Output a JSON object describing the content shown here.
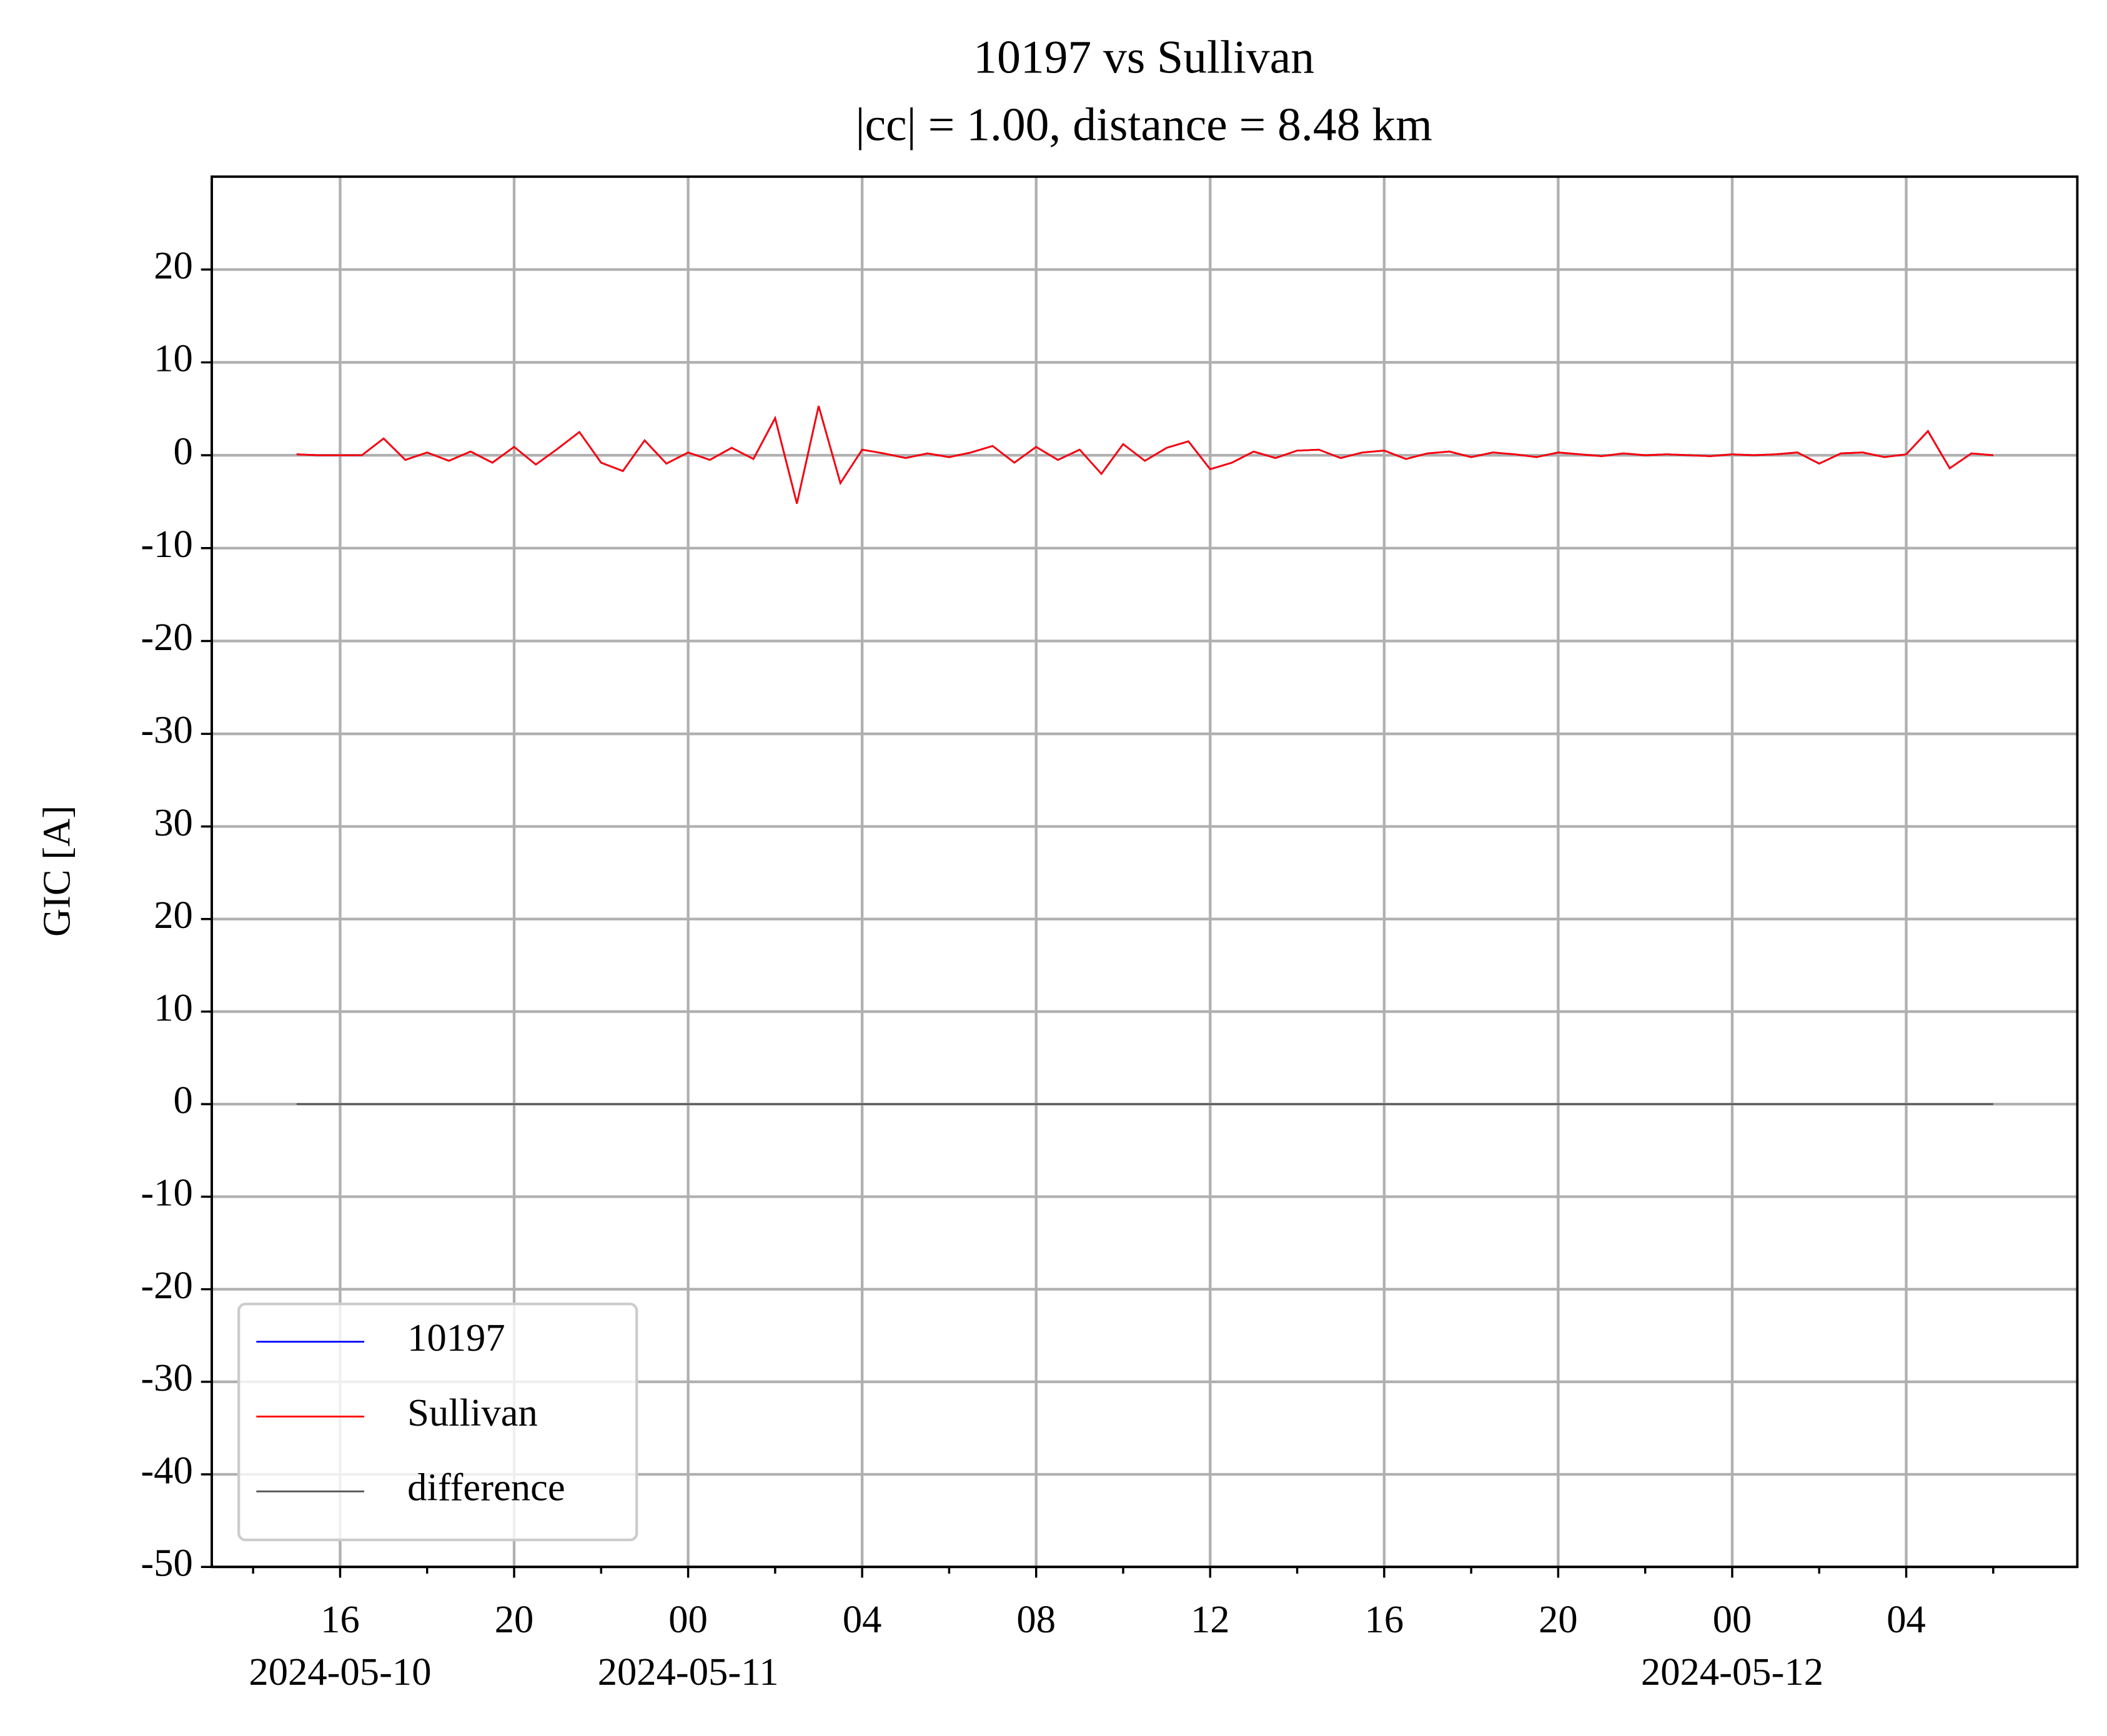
{
  "chart_data": [
    {
      "type": "line",
      "title": "10197 vs Sullivan",
      "subtitle": "|cc| = 1.00, distance = 8.48 km",
      "ylabel": "GIC [A]",
      "x": [
        "2024-05-10T15:00",
        "2024-05-10T15:30",
        "2024-05-10T16:00",
        "2024-05-10T16:30",
        "2024-05-10T17:00",
        "2024-05-10T17:30",
        "2024-05-10T18:00",
        "2024-05-10T18:30",
        "2024-05-10T19:00",
        "2024-05-10T19:30",
        "2024-05-10T20:00",
        "2024-05-10T20:30",
        "2024-05-10T21:00",
        "2024-05-10T21:30",
        "2024-05-10T22:00",
        "2024-05-10T22:30",
        "2024-05-10T23:00",
        "2024-05-10T23:30",
        "2024-05-11T00:00",
        "2024-05-11T00:30",
        "2024-05-11T01:00",
        "2024-05-11T01:30",
        "2024-05-11T02:00",
        "2024-05-11T02:30",
        "2024-05-11T03:00",
        "2024-05-11T03:30",
        "2024-05-11T04:00",
        "2024-05-11T04:30",
        "2024-05-11T05:00",
        "2024-05-11T05:30",
        "2024-05-11T06:00",
        "2024-05-11T06:30",
        "2024-05-11T07:00",
        "2024-05-11T07:30",
        "2024-05-11T08:00",
        "2024-05-11T08:30",
        "2024-05-11T09:00",
        "2024-05-11T09:30",
        "2024-05-11T10:00",
        "2024-05-11T10:30",
        "2024-05-11T11:00",
        "2024-05-11T11:30",
        "2024-05-11T12:00",
        "2024-05-11T12:30",
        "2024-05-11T13:00",
        "2024-05-11T13:30",
        "2024-05-11T14:00",
        "2024-05-11T14:30",
        "2024-05-11T15:00",
        "2024-05-11T15:30",
        "2024-05-11T16:00",
        "2024-05-11T16:30",
        "2024-05-11T17:00",
        "2024-05-11T17:30",
        "2024-05-11T18:00",
        "2024-05-11T18:30",
        "2024-05-11T19:00",
        "2024-05-11T19:30",
        "2024-05-11T20:00",
        "2024-05-11T20:30",
        "2024-05-11T21:00",
        "2024-05-11T21:30",
        "2024-05-11T22:00",
        "2024-05-11T22:30",
        "2024-05-11T23:00",
        "2024-05-11T23:30",
        "2024-05-12T00:00",
        "2024-05-12T00:30",
        "2024-05-12T01:00",
        "2024-05-12T01:30",
        "2024-05-12T02:00",
        "2024-05-12T02:30",
        "2024-05-12T03:00",
        "2024-05-12T03:30",
        "2024-05-12T04:00",
        "2024-05-12T04:30",
        "2024-05-12T05:00",
        "2024-05-12T05:30",
        "2024-05-12T06:00"
      ],
      "series": [
        {
          "name": "10197",
          "color": "#0000ff",
          "values": [
            0.1,
            0,
            0,
            0,
            1.8,
            -0.5,
            0.3,
            -0.6,
            0.4,
            -0.8,
            0.9,
            -1.0,
            0.7,
            2.5,
            -0.8,
            -1.7,
            1.6,
            -0.9,
            0.3,
            -0.5,
            0.8,
            -0.4,
            4.0,
            -5.2,
            5.3,
            -3.0,
            0.6,
            0.2,
            -0.3,
            0.2,
            -0.2,
            0.3,
            1.0,
            -0.8,
            0.9,
            -0.5,
            0.6,
            -2.0,
            1.2,
            -0.6,
            0.8,
            1.5,
            -1.5,
            -0.8,
            0.4,
            -0.3,
            0.5,
            0.6,
            -0.3,
            0.3,
            0.5,
            -0.4,
            0.2,
            0.4,
            -0.2,
            0.3,
            0.1,
            -0.2,
            0.3,
            0.1,
            -0.1,
            0.2,
            0,
            0.1,
            0,
            -0.1,
            0.1,
            0,
            0.1,
            0.3,
            -0.9,
            0.2,
            0.3,
            -0.2,
            0.1,
            2.6,
            -1.4,
            0.2,
            0
          ]
        },
        {
          "name": "Sullivan",
          "color": "#ff0000",
          "values": [
            0.1,
            0,
            0,
            0,
            1.8,
            -0.5,
            0.3,
            -0.6,
            0.4,
            -0.8,
            0.9,
            -1.0,
            0.7,
            2.5,
            -0.8,
            -1.7,
            1.6,
            -0.9,
            0.3,
            -0.5,
            0.8,
            -0.4,
            4.0,
            -5.2,
            5.3,
            -3.0,
            0.6,
            0.2,
            -0.3,
            0.2,
            -0.2,
            0.3,
            1.0,
            -0.8,
            0.9,
            -0.5,
            0.6,
            -2.0,
            1.2,
            -0.6,
            0.8,
            1.5,
            -1.5,
            -0.8,
            0.4,
            -0.3,
            0.5,
            0.6,
            -0.3,
            0.3,
            0.5,
            -0.4,
            0.2,
            0.4,
            -0.2,
            0.3,
            0.1,
            -0.2,
            0.3,
            0.1,
            -0.1,
            0.2,
            0,
            0.1,
            0,
            -0.1,
            0.1,
            0,
            0.1,
            0.3,
            -0.9,
            0.2,
            0.3,
            -0.2,
            0.1,
            2.6,
            -1.4,
            0.2,
            0
          ]
        }
      ],
      "ylim": [
        -32,
        30
      ],
      "yticks": [
        -30,
        -20,
        -10,
        0,
        10,
        20
      ],
      "grid": true
    },
    {
      "type": "line",
      "series": [
        {
          "name": "difference",
          "color": "#555555",
          "values": [
            0,
            0,
            0,
            0,
            0,
            0,
            0,
            0,
            0,
            0,
            0,
            0,
            0,
            0,
            0,
            0,
            0,
            0,
            0,
            0,
            0,
            0,
            0,
            0,
            0,
            0,
            0,
            0,
            0,
            0,
            0,
            0,
            0,
            0,
            0,
            0,
            0,
            0,
            0,
            0,
            0,
            0,
            0,
            0,
            0,
            0,
            0,
            0,
            0,
            0,
            0,
            0,
            0,
            0,
            0,
            0,
            0,
            0,
            0,
            0,
            0,
            0,
            0,
            0,
            0,
            0,
            0,
            0,
            0,
            0,
            0,
            0,
            0,
            0,
            0,
            0,
            0,
            0,
            0
          ]
        }
      ],
      "xlim": [
        "2024-05-10T13:03",
        "2024-05-12T07:56"
      ],
      "xticks": [
        {
          "value": "2024-05-10T16:00",
          "label": "16\n2024-05-10"
        },
        {
          "value": "2024-05-10T20:00",
          "label": "20"
        },
        {
          "value": "2024-05-11T00:00",
          "label": "00\n2024-05-11"
        },
        {
          "value": "2024-05-11T04:00",
          "label": "04"
        },
        {
          "value": "2024-05-11T08:00",
          "label": "08"
        },
        {
          "value": "2024-05-11T12:00",
          "label": "12"
        },
        {
          "value": "2024-05-11T16:00",
          "label": "16"
        },
        {
          "value": "2024-05-11T20:00",
          "label": "20"
        },
        {
          "value": "2024-05-12T00:00",
          "label": "00\n2024-05-12"
        },
        {
          "value": "2024-05-12T04:00",
          "label": "04"
        }
      ],
      "xminorticks": [
        "2024-05-10T14:00",
        "2024-05-10T18:00",
        "2024-05-10T22:00",
        "2024-05-11T02:00",
        "2024-05-11T06:00",
        "2024-05-11T10:00",
        "2024-05-11T14:00",
        "2024-05-11T18:00",
        "2024-05-11T22:00",
        "2024-05-12T02:00",
        "2024-05-12T06:00"
      ],
      "ylim": [
        -50,
        38
      ],
      "yticks": [
        -50,
        -40,
        -30,
        -20,
        -10,
        0,
        10,
        20,
        30
      ],
      "grid": true,
      "legend": "lower left"
    }
  ]
}
